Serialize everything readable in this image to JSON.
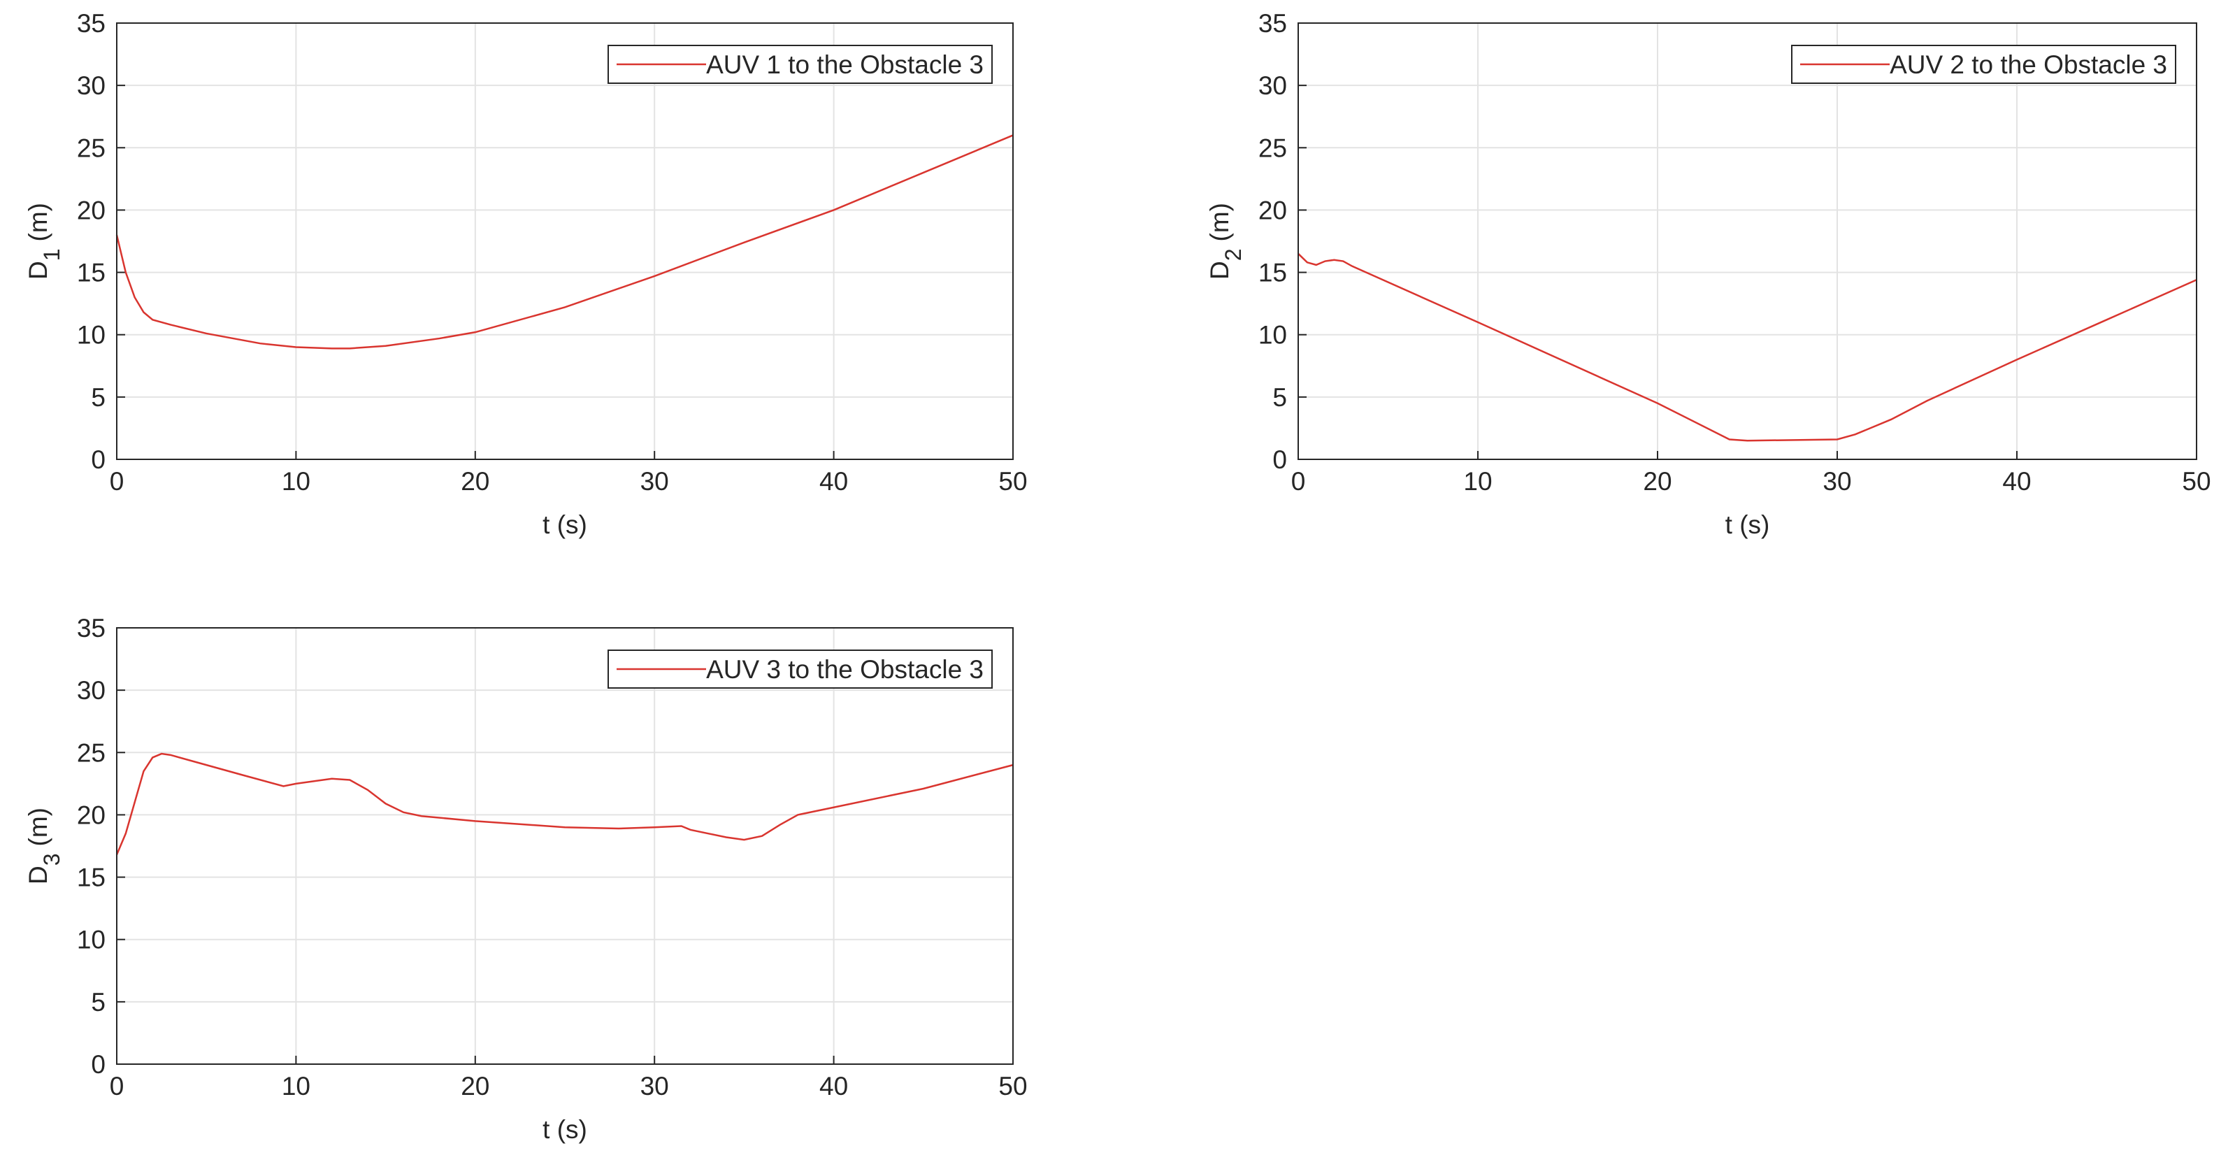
{
  "chart_data": [
    {
      "type": "line",
      "xlabel": "t (s)",
      "ylabel": {
        "text": "D",
        "subscript": "1",
        "unit": "(m)"
      },
      "x": [
        0,
        0.5,
        1,
        1.5,
        2,
        3,
        5,
        8,
        10,
        12,
        13,
        15,
        18,
        20,
        25,
        30,
        35,
        40,
        45,
        50
      ],
      "series": [
        {
          "name": "AUV 1 to the Obstacle 3",
          "color": "#d9352f",
          "values": [
            18,
            15,
            13,
            11.8,
            11.2,
            10.8,
            10.1,
            9.3,
            9.0,
            8.9,
            8.9,
            9.1,
            9.7,
            10.2,
            12.2,
            14.7,
            17.4,
            20.0,
            23.0,
            26.0
          ]
        }
      ],
      "xlim": [
        0,
        50
      ],
      "xticks": [
        0,
        10,
        20,
        30,
        40,
        50
      ],
      "ylim": [
        0,
        35
      ],
      "yticks": [
        0,
        5,
        10,
        15,
        20,
        25,
        30,
        35
      ],
      "grid": true,
      "legend": "northeast"
    },
    {
      "type": "line",
      "xlabel": "t (s)",
      "ylabel": {
        "text": "D",
        "subscript": "2",
        "unit": "(m)"
      },
      "x": [
        0,
        0.5,
        1,
        1.5,
        2,
        2.5,
        3,
        10,
        20,
        24,
        25,
        30,
        31,
        33,
        35,
        40,
        45,
        50
      ],
      "series": [
        {
          "name": "AUV 2 to the Obstacle 3",
          "color": "#d9352f",
          "values": [
            16.5,
            15.8,
            15.6,
            15.9,
            16.0,
            15.9,
            15.5,
            11.0,
            4.5,
            1.6,
            1.5,
            1.6,
            2.0,
            3.2,
            4.7,
            8.0,
            11.2,
            14.4
          ]
        }
      ],
      "xlim": [
        0,
        50
      ],
      "xticks": [
        0,
        10,
        20,
        30,
        40,
        50
      ],
      "ylim": [
        0,
        35
      ],
      "yticks": [
        0,
        5,
        10,
        15,
        20,
        25,
        30,
        35
      ],
      "grid": true,
      "legend": "northeast"
    },
    {
      "type": "line",
      "xlabel": "t (s)",
      "ylabel": {
        "text": "D",
        "subscript": "3",
        "unit": "(m)"
      },
      "x": [
        0,
        0.5,
        1,
        1.5,
        2,
        2.5,
        3,
        5,
        7,
        9.3,
        10,
        12,
        13,
        14,
        15,
        16,
        17,
        20,
        25,
        28,
        30,
        31.5,
        32,
        34,
        35,
        36,
        37,
        38,
        40,
        45,
        50
      ],
      "series": [
        {
          "name": "AUV 3 to the Obstacle 3",
          "color": "#d9352f",
          "values": [
            16.8,
            18.5,
            21,
            23.5,
            24.6,
            24.9,
            24.8,
            24.0,
            23.2,
            22.3,
            22.5,
            22.9,
            22.8,
            22.0,
            20.9,
            20.2,
            19.9,
            19.5,
            19.0,
            18.9,
            19.0,
            19.1,
            18.8,
            18.2,
            18.0,
            18.3,
            19.2,
            20.0,
            20.6,
            22.1,
            24.0
          ]
        }
      ],
      "xlim": [
        0,
        50
      ],
      "xticks": [
        0,
        10,
        20,
        30,
        40,
        50
      ],
      "ylim": [
        0,
        35
      ],
      "yticks": [
        0,
        5,
        10,
        15,
        20,
        25,
        30,
        35
      ],
      "grid": true,
      "legend": "northeast"
    }
  ]
}
